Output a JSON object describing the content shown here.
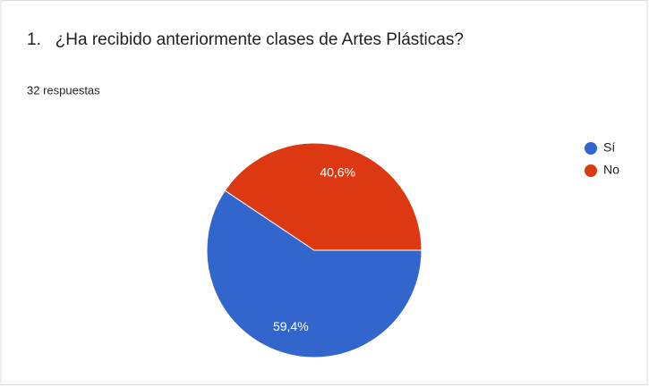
{
  "chart_data": {
    "type": "pie",
    "title": "1.   ¿Ha recibido anteriormente clases de Artes Plásticas?",
    "subtitle": "32 respuestas",
    "categories": [
      "Sí",
      "No"
    ],
    "values": [
      59.4,
      40.6
    ],
    "value_labels": [
      "59,4%",
      "40,6%"
    ],
    "colors": [
      "#3366cc",
      "#dc3912"
    ],
    "legend": "right"
  }
}
